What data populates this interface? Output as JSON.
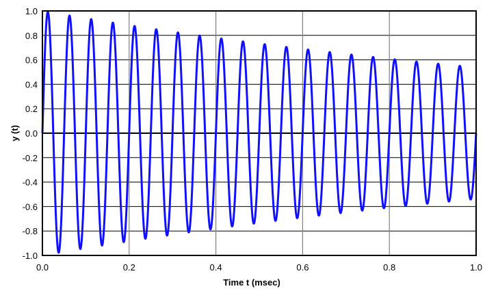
{
  "chart_data": {
    "type": "line",
    "title": "",
    "xlabel": "Time t (msec)",
    "ylabel": "y (t)",
    "xlim": [
      0.0,
      1.0
    ],
    "ylim": [
      -1.0,
      1.0
    ],
    "x_ticks": [
      "0.0",
      "0.2",
      "0.4",
      "0.6",
      "0.8",
      "1.0"
    ],
    "y_ticks": [
      "1.0",
      "0.8",
      "0.6",
      "0.4",
      "0.2",
      "0.0",
      "-0.2",
      "-0.4",
      "-0.6",
      "-0.8",
      "-1.0"
    ],
    "grid": true,
    "legend": null,
    "series": [
      {
        "name": "y(t)",
        "color": "#1010ff",
        "description": "Damped sinusoid, ~20 cycles over 1 msec, envelope decaying from 1.0 to ~0.54",
        "model": {
          "amplitude": 1.0,
          "frequency_cycles_per_msec": 20,
          "decay_rate_per_msec": 0.62,
          "phase": 0
        },
        "peaks": [
          {
            "t": 0.0125,
            "y": 0.99
          },
          {
            "t": 0.0625,
            "y": 0.96
          },
          {
            "t": 0.1125,
            "y": 0.93
          },
          {
            "t": 0.1625,
            "y": 0.9
          },
          {
            "t": 0.2125,
            "y": 0.88
          },
          {
            "t": 0.2625,
            "y": 0.85
          },
          {
            "t": 0.3125,
            "y": 0.82
          },
          {
            "t": 0.3625,
            "y": 0.8
          },
          {
            "t": 0.4125,
            "y": 0.77
          },
          {
            "t": 0.4625,
            "y": 0.75
          },
          {
            "t": 0.5125,
            "y": 0.73
          },
          {
            "t": 0.5625,
            "y": 0.71
          },
          {
            "t": 0.6125,
            "y": 0.68
          },
          {
            "t": 0.6625,
            "y": 0.66
          },
          {
            "t": 0.7125,
            "y": 0.64
          },
          {
            "t": 0.7625,
            "y": 0.62
          },
          {
            "t": 0.8125,
            "y": 0.6
          },
          {
            "t": 0.8625,
            "y": 0.59
          },
          {
            "t": 0.9125,
            "y": 0.57
          },
          {
            "t": 0.9625,
            "y": 0.55
          }
        ],
        "troughs": [
          {
            "t": 0.0375,
            "y": -0.98
          },
          {
            "t": 0.0875,
            "y": -0.95
          },
          {
            "t": 0.1375,
            "y": -0.92
          },
          {
            "t": 0.1875,
            "y": -0.89
          },
          {
            "t": 0.2375,
            "y": -0.86
          },
          {
            "t": 0.2875,
            "y": -0.84
          },
          {
            "t": 0.3375,
            "y": -0.81
          },
          {
            "t": 0.3875,
            "y": -0.79
          },
          {
            "t": 0.4375,
            "y": -0.76
          },
          {
            "t": 0.4875,
            "y": -0.74
          },
          {
            "t": 0.5375,
            "y": -0.72
          },
          {
            "t": 0.5875,
            "y": -0.69
          },
          {
            "t": 0.6375,
            "y": -0.67
          },
          {
            "t": 0.6875,
            "y": -0.65
          },
          {
            "t": 0.7375,
            "y": -0.63
          },
          {
            "t": 0.7875,
            "y": -0.61
          },
          {
            "t": 0.8375,
            "y": -0.59
          },
          {
            "t": 0.8875,
            "y": -0.58
          },
          {
            "t": 0.9375,
            "y": -0.56
          },
          {
            "t": 0.9875,
            "y": -0.54
          }
        ]
      }
    ]
  },
  "style": {
    "line_color": "#1010ff",
    "grid_h_color": "#000000",
    "grid_v_color": "#7f7f7f",
    "frame_color": "#000000"
  }
}
